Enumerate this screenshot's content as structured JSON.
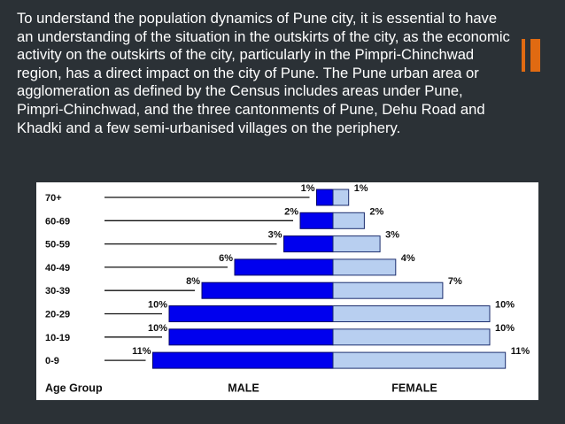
{
  "slide": {
    "text": "To understand the population dynamics of Pune city, it is essential to have an understanding of the situation in the outskirts of the city, as the economic activity on the outskirts of the city, particularly in the Pimpri-Chinchwad region, has a direct impact on the city of Pune. The Pune urban area or agglomeration as defined by the Census includes areas under Pune, Pimpri-Chinchwad, and the three cantonments of Pune, Dehu Road and Khadki and a few semi-urbanised villages on the periphery.",
    "accent_color": "#e06a12"
  },
  "chart_data": {
    "type": "bar",
    "orientation": "population-pyramid",
    "categories": [
      "70+",
      "60-69",
      "50-59",
      "40-49",
      "30-39",
      "20-29",
      "10-19",
      "0-9"
    ],
    "series": [
      {
        "name": "MALE",
        "values": [
          1,
          2,
          3,
          6,
          8,
          10,
          10,
          11
        ],
        "labels": [
          "1%",
          "2%",
          "3%",
          "6%",
          "8%",
          "10%",
          "10%",
          "11%"
        ],
        "color": "#0000ee"
      },
      {
        "name": "FEMALE",
        "values": [
          1,
          2,
          3,
          4,
          7,
          10,
          10,
          11
        ],
        "labels": [
          "1%",
          "2%",
          "3%",
          "4%",
          "7%",
          "10%",
          "10%",
          "11%"
        ],
        "color": "#b8cff0"
      }
    ],
    "category_axis_title": "Age Group",
    "unit": "%"
  }
}
